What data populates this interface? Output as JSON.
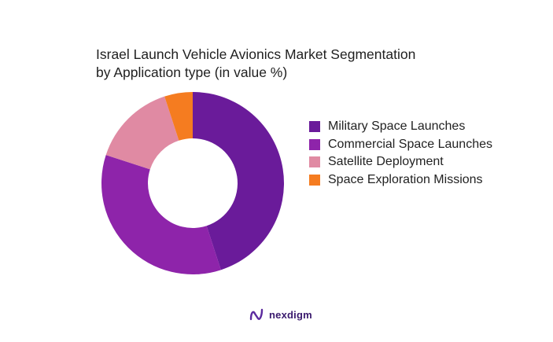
{
  "chart_data": {
    "type": "pie",
    "title": "Israel Launch Vehicle Avionics  Market Segmentation\nby Application type (in value %)",
    "categories": [
      "Military Space Launches",
      "Commercial Space Launches",
      "Satellite Deployment",
      "Space Exploration Missions"
    ],
    "values": [
      45,
      35,
      15,
      5
    ],
    "colors": [
      "#6a1b9a",
      "#8e24aa",
      "#e08aa3",
      "#f57c20"
    ],
    "donut": true,
    "legend_position": "right"
  },
  "brand": {
    "name": "nexdigm",
    "icon": "nexdigm-logo-icon",
    "color": "#3a1a6e"
  }
}
